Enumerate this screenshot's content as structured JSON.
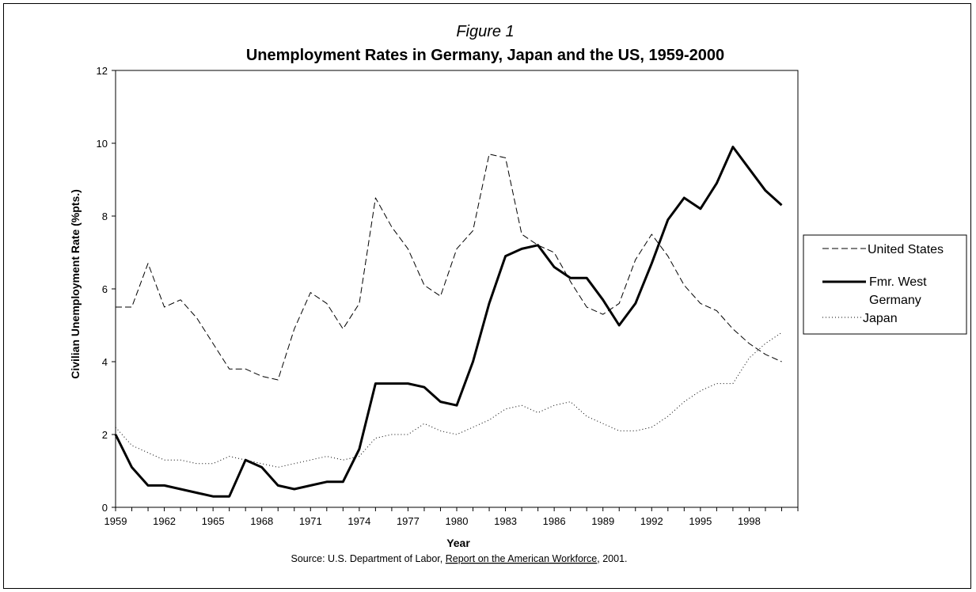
{
  "figure_label": "Figure 1",
  "source": {
    "prefix": "Source: U.S. Department of Labor, ",
    "report": "Report on the American Workforce",
    "suffix": ", 2001."
  },
  "chart_data": {
    "type": "line",
    "title": "Unemployment Rates in Germany, Japan and the US, 1959-2000",
    "xlabel": "Year",
    "ylabel": "Civilian Unemployment Rate (%pts.)",
    "xlim": [
      1959,
      2000
    ],
    "ylim": [
      0,
      12
    ],
    "y_ticks": [
      0,
      2,
      4,
      6,
      8,
      10,
      12
    ],
    "x_tick_labels": [
      "1959",
      "1962",
      "1965",
      "1968",
      "1971",
      "1974",
      "1977",
      "1980",
      "1983",
      "1986",
      "1989",
      "1992",
      "1995",
      "1998"
    ],
    "legend_position": "right",
    "grid": false,
    "x": [
      1959,
      1960,
      1961,
      1962,
      1963,
      1964,
      1965,
      1966,
      1967,
      1968,
      1969,
      1970,
      1971,
      1972,
      1973,
      1974,
      1975,
      1976,
      1977,
      1978,
      1979,
      1980,
      1981,
      1982,
      1983,
      1984,
      1985,
      1986,
      1987,
      1988,
      1989,
      1990,
      1991,
      1992,
      1993,
      1994,
      1995,
      1996,
      1997,
      1998,
      1999,
      2000
    ],
    "series": [
      {
        "name": "United States",
        "style": "dashed",
        "values": [
          5.5,
          5.5,
          6.7,
          5.5,
          5.7,
          5.2,
          4.5,
          3.8,
          3.8,
          3.6,
          3.5,
          4.9,
          5.9,
          5.6,
          4.9,
          5.6,
          8.5,
          7.7,
          7.1,
          6.1,
          5.8,
          7.1,
          7.6,
          9.7,
          9.6,
          7.5,
          7.2,
          7.0,
          6.2,
          5.5,
          5.3,
          5.6,
          6.8,
          7.5,
          6.9,
          6.1,
          5.6,
          5.4,
          4.9,
          4.5,
          4.2,
          4.0
        ]
      },
      {
        "name": "Fmr. West Germany",
        "style": "solid-thick",
        "values": [
          2.0,
          1.1,
          0.6,
          0.6,
          0.5,
          0.4,
          0.3,
          0.3,
          1.3,
          1.1,
          0.6,
          0.5,
          0.6,
          0.7,
          0.7,
          1.6,
          3.4,
          3.4,
          3.4,
          3.3,
          2.9,
          2.8,
          4.0,
          5.6,
          6.9,
          7.1,
          7.2,
          6.6,
          6.3,
          6.3,
          5.7,
          5.0,
          5.6,
          6.7,
          7.9,
          8.5,
          8.2,
          8.9,
          9.9,
          9.3,
          8.7,
          8.3
        ]
      },
      {
        "name": "Japan",
        "style": "dotted",
        "values": [
          2.2,
          1.7,
          1.5,
          1.3,
          1.3,
          1.2,
          1.2,
          1.4,
          1.3,
          1.2,
          1.1,
          1.2,
          1.3,
          1.4,
          1.3,
          1.4,
          1.9,
          2.0,
          2.0,
          2.3,
          2.1,
          2.0,
          2.2,
          2.4,
          2.7,
          2.8,
          2.6,
          2.8,
          2.9,
          2.5,
          2.3,
          2.1,
          2.1,
          2.2,
          2.5,
          2.9,
          3.2,
          3.4,
          3.4,
          4.1,
          4.5,
          4.8
        ]
      }
    ]
  }
}
